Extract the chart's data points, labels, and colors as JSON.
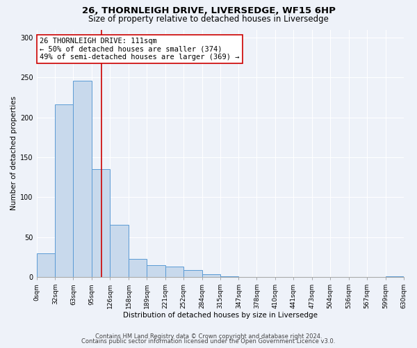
{
  "title": "26, THORNLEIGH DRIVE, LIVERSEDGE, WF15 6HP",
  "subtitle": "Size of property relative to detached houses in Liversedge",
  "xlabel": "Distribution of detached houses by size in Liversedge",
  "ylabel": "Number of detached properties",
  "bin_edges": [
    0,
    32,
    63,
    95,
    126,
    158,
    189,
    221,
    252,
    284,
    315,
    347,
    378,
    410,
    441,
    473,
    504,
    536,
    567,
    599,
    630
  ],
  "bar_heights": [
    30,
    216,
    246,
    135,
    65,
    23,
    15,
    13,
    9,
    3,
    1,
    0,
    0,
    0,
    0,
    0,
    0,
    0,
    0,
    1
  ],
  "bar_color": "#c8d9ec",
  "bar_edge_color": "#5b9bd5",
  "vline_x": 111,
  "vline_color": "#cc0000",
  "annotation_line1": "26 THORNLEIGH DRIVE: 111sqm",
  "annotation_line2": "← 50% of detached houses are smaller (374)",
  "annotation_line3": "49% of semi-detached houses are larger (369) →",
  "annotation_box_color": "#ffffff",
  "annotation_box_edge_color": "#cc0000",
  "ylim": [
    0,
    310
  ],
  "yticks": [
    0,
    50,
    100,
    150,
    200,
    250,
    300
  ],
  "tick_labels": [
    "0sqm",
    "32sqm",
    "63sqm",
    "95sqm",
    "126sqm",
    "158sqm",
    "189sqm",
    "221sqm",
    "252sqm",
    "284sqm",
    "315sqm",
    "347sqm",
    "378sqm",
    "410sqm",
    "441sqm",
    "473sqm",
    "504sqm",
    "536sqm",
    "567sqm",
    "599sqm",
    "630sqm"
  ],
  "footnote1": "Contains HM Land Registry data © Crown copyright and database right 2024.",
  "footnote2": "Contains public sector information licensed under the Open Government Licence v3.0.",
  "background_color": "#eef2f9",
  "grid_color": "#ffffff",
  "title_fontsize": 9.5,
  "subtitle_fontsize": 8.5,
  "axis_label_fontsize": 7.5,
  "tick_fontsize": 6.5,
  "annotation_fontsize": 7.5,
  "footnote_fontsize": 6.0
}
